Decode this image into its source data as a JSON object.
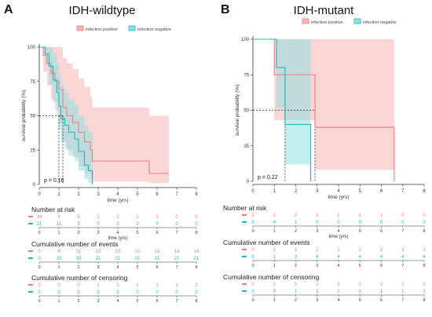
{
  "chart_data": [
    {
      "type": "line",
      "panel_letter": "A",
      "title": "IDH-wildtype",
      "xlabel": "time (yrs)",
      "ylabel": "survival probability (%)",
      "xlim": [
        0,
        8
      ],
      "ylim": [
        0,
        100
      ],
      "x_ticks": [
        "0",
        "1",
        "2",
        "3",
        "4",
        "5",
        "6",
        "7",
        "8"
      ],
      "y_ticks": [
        "0",
        "25",
        "50",
        "75",
        "100"
      ],
      "pvalue": "p = 0.16",
      "legend_position": "top-right",
      "median_lines": [
        {
          "x": 1.0,
          "y": 50
        },
        {
          "x": 1.2,
          "y": 50
        }
      ],
      "series": [
        {
          "name": "infection positive",
          "color": "#f07c7c",
          "band_color": "#f7b4b4",
          "steps": [
            [
              0,
              100
            ],
            [
              0.2,
              94
            ],
            [
              0.4,
              88
            ],
            [
              0.6,
              81
            ],
            [
              0.8,
              75
            ],
            [
              1.0,
              69
            ],
            [
              1.2,
              56
            ],
            [
              1.4,
              50
            ],
            [
              1.7,
              45
            ],
            [
              2.0,
              38
            ],
            [
              2.3,
              31
            ],
            [
              2.6,
              25
            ],
            [
              2.7,
              17
            ],
            [
              5.6,
              8
            ],
            [
              6.6,
              8
            ]
          ],
          "lower": [
            [
              0,
              100
            ],
            [
              0.2,
              82
            ],
            [
              0.4,
              72
            ],
            [
              0.6,
              62
            ],
            [
              0.8,
              54
            ],
            [
              1.0,
              44
            ],
            [
              1.2,
              31
            ],
            [
              1.4,
              25
            ],
            [
              1.7,
              20
            ],
            [
              2.0,
              13
            ],
            [
              2.3,
              8
            ],
            [
              2.6,
              5
            ],
            [
              2.7,
              2
            ],
            [
              5.6,
              1
            ],
            [
              6.6,
              1
            ]
          ],
          "upper": [
            [
              0,
              100
            ],
            [
              0.2,
              100
            ],
            [
              0.4,
              100
            ],
            [
              0.6,
              100
            ],
            [
              0.8,
              100
            ],
            [
              1.0,
              100
            ],
            [
              1.2,
              92
            ],
            [
              1.4,
              88
            ],
            [
              1.7,
              84
            ],
            [
              2.0,
              77
            ],
            [
              2.3,
              71
            ],
            [
              2.6,
              64
            ],
            [
              2.7,
              56
            ],
            [
              5.6,
              50
            ],
            [
              6.6,
              50
            ]
          ]
        },
        {
          "name": "infection negative",
          "color": "#1cb8b8",
          "band_color": "#8fe0e0",
          "steps": [
            [
              0,
              100
            ],
            [
              0.3,
              95
            ],
            [
              0.5,
              86
            ],
            [
              0.7,
              76
            ],
            [
              0.9,
              67
            ],
            [
              1.0,
              57
            ],
            [
              1.1,
              48
            ],
            [
              1.3,
              43
            ],
            [
              1.5,
              38
            ],
            [
              1.8,
              33
            ],
            [
              2.0,
              24
            ],
            [
              2.3,
              14
            ],
            [
              2.5,
              10
            ],
            [
              2.7,
              0
            ]
          ],
          "lower": [
            [
              0,
              100
            ],
            [
              0.3,
              87
            ],
            [
              0.5,
              73
            ],
            [
              0.7,
              60
            ],
            [
              0.9,
              50
            ],
            [
              1.0,
              40
            ],
            [
              1.1,
              31
            ],
            [
              1.3,
              26
            ],
            [
              1.5,
              21
            ],
            [
              1.8,
              17
            ],
            [
              2.0,
              10
            ],
            [
              2.3,
              4
            ],
            [
              2.5,
              1
            ],
            [
              2.7,
              0
            ]
          ],
          "upper": [
            [
              0,
              100
            ],
            [
              0.3,
              100
            ],
            [
              0.5,
              100
            ],
            [
              0.7,
              95
            ],
            [
              0.9,
              88
            ],
            [
              1.0,
              80
            ],
            [
              1.1,
              72
            ],
            [
              1.3,
              67
            ],
            [
              1.5,
              62
            ],
            [
              1.8,
              58
            ],
            [
              2.0,
              50
            ],
            [
              2.3,
              43
            ],
            [
              2.5,
              38
            ],
            [
              2.7,
              0
            ]
          ]
        }
      ],
      "tables": [
        {
          "title": "Number at risk",
          "rows": [
            {
              "color": "#f07c7c",
              "values": [
                "16",
                "8",
                "5",
                "2",
                "2",
                "2",
                "1",
                "0",
                "0"
              ]
            },
            {
              "color": "#1cb8b8",
              "values": [
                "21",
                "11",
                "3",
                "0",
                "0",
                "0",
                "0",
                "0",
                "0"
              ]
            }
          ]
        },
        {
          "title": "Cumulative number of events",
          "rows": [
            {
              "color": "#f07c7c",
              "values": [
                "0",
                "8",
                "11",
                "13",
                "13",
                "13",
                "14",
                "14",
                "14"
              ]
            },
            {
              "color": "#1cb8b8",
              "values": [
                "0",
                "10",
                "18",
                "21",
                "21",
                "21",
                "21",
                "21",
                "21"
              ]
            }
          ]
        },
        {
          "title": "Cumulative number of censoring",
          "rows": [
            {
              "color": "#f07c7c",
              "values": [
                "0",
                "0",
                "0",
                "1",
                "1",
                "1",
                "1",
                "2",
                "2"
              ]
            },
            {
              "color": "#1cb8b8",
              "values": [
                "0",
                "0",
                "0",
                "0",
                "0",
                "0",
                "0",
                "0",
                "0"
              ]
            }
          ]
        }
      ]
    },
    {
      "type": "line",
      "panel_letter": "B",
      "title": "IDH-mutant",
      "xlabel": "time (yrs)",
      "ylabel": "survival probability (%)",
      "xlim": [
        0,
        8
      ],
      "ylim": [
        0,
        100
      ],
      "x_ticks": [
        "0",
        "1",
        "2",
        "3",
        "4",
        "5",
        "6",
        "7",
        "8"
      ],
      "y_ticks": [
        "0",
        "25",
        "50",
        "75",
        "100"
      ],
      "pvalue": "p = 0.22",
      "legend_position": "top-right",
      "median_lines": [
        {
          "x": 1.5,
          "y": 50
        },
        {
          "x": 2.9,
          "y": 50
        }
      ],
      "series": [
        {
          "name": "infection positive",
          "color": "#f07c7c",
          "band_color": "#f7b4b4",
          "steps": [
            [
              0,
              100
            ],
            [
              1.0,
              75
            ],
            [
              2.9,
              38
            ],
            [
              6.6,
              0
            ]
          ],
          "lower": [
            [
              0,
              100
            ],
            [
              1.0,
              43
            ],
            [
              2.9,
              8
            ],
            [
              6.6,
              0
            ]
          ],
          "upper": [
            [
              0,
              100
            ],
            [
              1.0,
              100
            ],
            [
              2.9,
              100
            ],
            [
              6.6,
              0
            ]
          ]
        },
        {
          "name": "infection negative",
          "color": "#1cb8b8",
          "band_color": "#8fe0e0",
          "steps": [
            [
              0,
              100
            ],
            [
              0.7,
              100
            ],
            [
              1.1,
              80
            ],
            [
              1.5,
              40
            ],
            [
              2.7,
              0
            ]
          ],
          "lower": [
            [
              0,
              100
            ],
            [
              0.7,
              100
            ],
            [
              1.1,
              52
            ],
            [
              1.5,
              12
            ],
            [
              2.7,
              0
            ]
          ],
          "upper": [
            [
              0,
              100
            ],
            [
              0.7,
              100
            ],
            [
              1.1,
              100
            ],
            [
              1.5,
              100
            ],
            [
              2.7,
              0
            ]
          ]
        }
      ],
      "tables": [
        {
          "title": "Number at risk",
          "rows": [
            {
              "color": "#f07c7c",
              "values": [
                "5",
                "2",
                "2",
                "1",
                "1",
                "1",
                "1",
                "0",
                "0"
              ]
            },
            {
              "color": "#1cb8b8",
              "values": [
                "5",
                "4",
                "1",
                "0",
                "0",
                "0",
                "0",
                "0",
                "0"
              ]
            }
          ]
        },
        {
          "title": "Cumulative number of events",
          "rows": [
            {
              "color": "#f07c7c",
              "values": [
                "0",
                "1",
                "1",
                "2",
                "2",
                "2",
                "2",
                "3",
                "3"
              ]
            },
            {
              "color": "#1cb8b8",
              "values": [
                "0",
                "1",
                "3",
                "4",
                "4",
                "4",
                "4",
                "4",
                "4"
              ]
            }
          ]
        },
        {
          "title": "Cumulative number of censoring",
          "rows": [
            {
              "color": "#f07c7c",
              "values": [
                "0",
                "2",
                "2",
                "2",
                "2",
                "2",
                "2",
                "2",
                "2"
              ]
            },
            {
              "color": "#1cb8b8",
              "values": [
                "0",
                "0",
                "1",
                "1",
                "1",
                "1",
                "1",
                "1",
                "1"
              ]
            }
          ]
        }
      ]
    }
  ]
}
